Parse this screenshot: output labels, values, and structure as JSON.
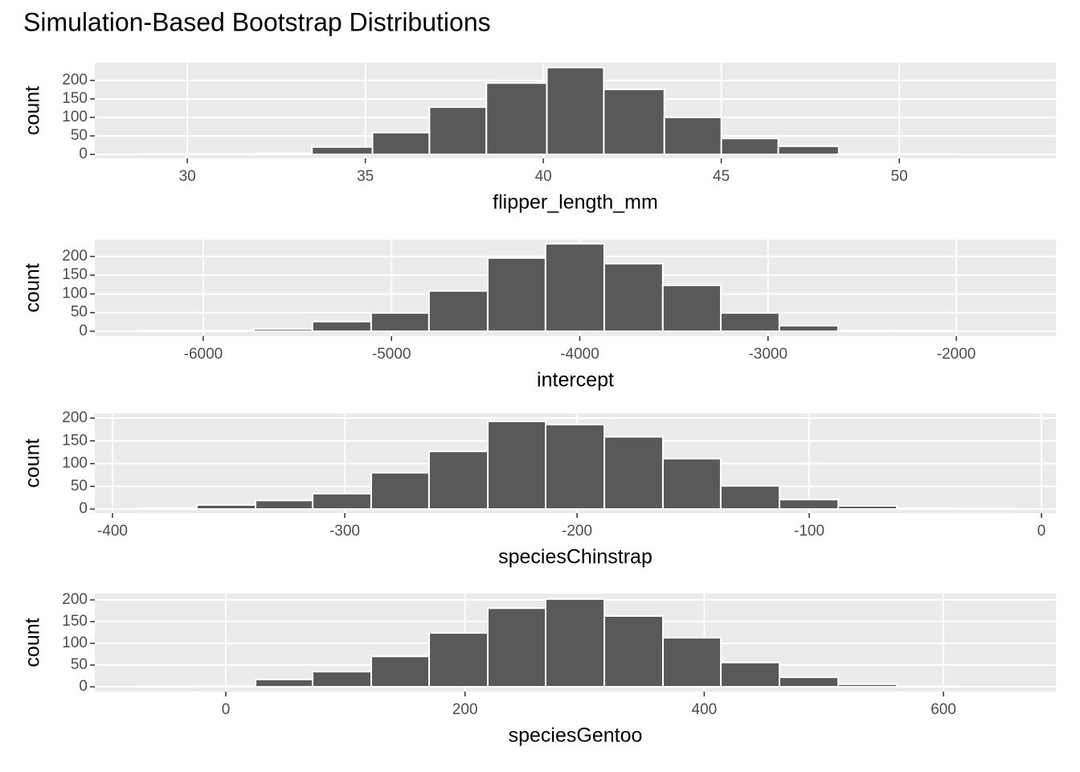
{
  "title": "Simulation-Based Bootstrap Distributions",
  "chart_data": [
    {
      "type": "histogram",
      "x_label": "flipper_length_mm",
      "y_label": "count",
      "color": "#595959",
      "grid": true,
      "bins": [
        28.6,
        30.2,
        31.9,
        33.5,
        35.2,
        36.8,
        38.4,
        40.1,
        41.7,
        43.4,
        45.0,
        46.6,
        48.3,
        49.9,
        51.6,
        53.2
      ],
      "values": [
        1,
        1,
        3,
        20,
        59,
        128,
        193,
        235,
        176,
        100,
        43,
        22,
        2,
        1,
        0
      ],
      "xlim": [
        27.4,
        54.4
      ],
      "xticks": [
        30,
        35,
        40,
        45,
        50
      ],
      "ylim": [
        -11,
        248
      ],
      "yticks": [
        0,
        50,
        100,
        150,
        200
      ]
    },
    {
      "type": "histogram",
      "x_label": "intercept",
      "y_label": "count",
      "color": "#595959",
      "grid": true,
      "bins": [
        -6354,
        -6043,
        -5731,
        -5420,
        -5108,
        -4801,
        -4489,
        -4182,
        -3870,
        -3559,
        -3251,
        -2940,
        -2628,
        -2317,
        -2005,
        -1694
      ],
      "values": [
        1,
        2,
        6,
        26,
        49,
        108,
        196,
        234,
        181,
        123,
        49,
        15,
        2,
        1,
        0
      ],
      "xlim": [
        -6576,
        -1471
      ],
      "xticks": [
        -6000,
        -5000,
        -4000,
        -3000,
        -2000
      ],
      "ylim": [
        -13,
        245
      ],
      "yticks": [
        0,
        50,
        100,
        150,
        200
      ]
    },
    {
      "type": "histogram",
      "x_label": "speciesChinstrap",
      "y_label": "count",
      "color": "#595959",
      "grid": true,
      "bins": [
        -389.6,
        -363.7,
        -338.4,
        -313.8,
        -288.6,
        -263.7,
        -238.4,
        -213.5,
        -188.2,
        -163.0,
        -138.1,
        -112.8,
        -87.5,
        -62.3,
        -37.0,
        -11.8
      ],
      "values": [
        2,
        9,
        19,
        34,
        80,
        127,
        193,
        186,
        159,
        111,
        51,
        21,
        7,
        2,
        1
      ],
      "xlim": [
        -407.6,
        6.2
      ],
      "xticks": [
        -400,
        -300,
        -200,
        -100,
        0
      ],
      "ylim": [
        -8.8,
        210.6
      ],
      "yticks": [
        0,
        50,
        100,
        150,
        200
      ]
    },
    {
      "type": "histogram",
      "x_label": "speciesGentoo",
      "y_label": "count",
      "color": "#595959",
      "grid": true,
      "bins": [
        -74.6,
        -24.2,
        24.9,
        72.6,
        121.6,
        170.0,
        219.0,
        267.4,
        316.5,
        365.5,
        413.9,
        462.9,
        512.0,
        561.0,
        610.1,
        659.1
      ],
      "values": [
        1,
        2,
        17,
        35,
        70,
        124,
        181,
        202,
        163,
        113,
        56,
        22,
        6,
        1,
        0
      ],
      "xlim": [
        -109.5,
        694
      ],
      "xticks": [
        0,
        200,
        400,
        600
      ],
      "ylim": [
        -11,
        214.8
      ],
      "yticks": [
        0,
        50,
        100,
        150,
        200
      ]
    }
  ]
}
